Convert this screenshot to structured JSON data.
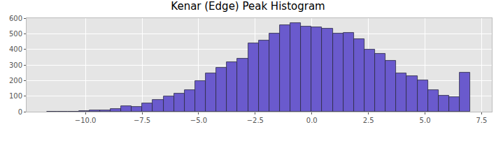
{
  "chart_data": {
    "type": "histogram",
    "title": "Kenar (Edge) Peak Histogram",
    "bins": [
      -11.7,
      -11.2325,
      -10.765,
      -10.2975,
      -9.83,
      -9.3625,
      -8.895,
      -8.4275,
      -7.96,
      -7.4925,
      -7.025,
      -6.5575,
      -6.09,
      -5.6225,
      -5.155,
      -4.6875,
      -4.22,
      -3.7525,
      -3.285,
      -2.8175,
      -2.35,
      -1.8825,
      -1.415,
      -0.9475,
      -0.48,
      -0.0125,
      0.455,
      0.9225,
      1.39,
      1.8575,
      2.325,
      2.7925,
      3.26,
      3.7275,
      4.195,
      4.6625,
      5.13,
      5.5975,
      6.065,
      6.5325,
      7.0
    ],
    "values": [
      1,
      2,
      2,
      5,
      8,
      10,
      20,
      35,
      30,
      52,
      75,
      100,
      118,
      140,
      197,
      245,
      283,
      320,
      340,
      440,
      458,
      500,
      555,
      570,
      545,
      542,
      535,
      503,
      507,
      465,
      397,
      372,
      325,
      245,
      230,
      200,
      140,
      105,
      92,
      253
    ],
    "color": "#6a5acd",
    "xlim": [
      -12.6,
      7.95
    ],
    "xticks": [
      -10.0,
      -7.5,
      -5.0,
      -2.5,
      0.0,
      2.5,
      5.0,
      7.5
    ],
    "ylim": [
      0,
      600
    ],
    "yticks": [
      0,
      100,
      200,
      300,
      400,
      500,
      600
    ],
    "grid": true
  }
}
